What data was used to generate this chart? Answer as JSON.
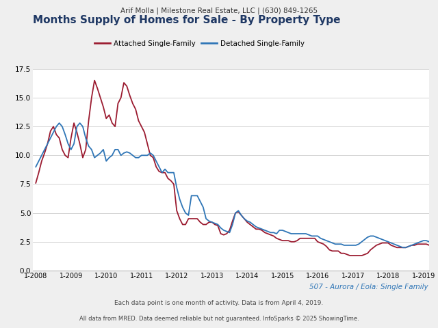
{
  "header": "Arif Molla | Milestone Real Estate, LLC | (630) 849-1265",
  "title": "Months Supply of Homes for Sale - By Property Type",
  "subtitle": "507 - Aurora / Eola: Single Family",
  "footnote1": "Each data point is one month of activity. Data is from April 4, 2019.",
  "footnote2": "All data from MRED. Data deemed reliable but not guaranteed. InfoSparks © 2025 ShowingTime.",
  "legend_attached": "Attached Single-Family",
  "legend_detached": "Detached Single-Family",
  "color_attached": "#9B1B30",
  "color_detached": "#2E75B6",
  "color_title": "#1F3864",
  "color_subtitle": "#2E75B6",
  "background_color": "#EFEFEF",
  "plot_background": "#FFFFFF",
  "ylim": [
    0,
    17.5
  ],
  "yticks": [
    0.0,
    2.5,
    5.0,
    7.5,
    10.0,
    12.5,
    15.0,
    17.5
  ],
  "xtick_labels": [
    "1-2008",
    "1-2009",
    "1-2010",
    "1-2011",
    "1-2012",
    "1-2013",
    "1-2014",
    "1-2015",
    "1-2016",
    "1-2017",
    "1-2018",
    "1-2019"
  ],
  "attached": [
    7.6,
    8.5,
    9.5,
    10.2,
    11.0,
    12.1,
    12.5,
    11.8,
    11.5,
    10.5,
    10.0,
    9.8,
    11.5,
    12.8,
    12.0,
    11.0,
    9.8,
    10.5,
    13.0,
    15.0,
    16.5,
    15.8,
    15.0,
    14.2,
    13.2,
    13.5,
    12.8,
    12.5,
    14.5,
    15.0,
    16.3,
    16.0,
    15.2,
    14.5,
    14.0,
    13.0,
    12.5,
    12.0,
    11.0,
    10.0,
    9.8,
    9.0,
    8.6,
    8.5,
    8.5,
    8.0,
    7.8,
    7.5,
    5.2,
    4.5,
    4.0,
    4.0,
    4.5,
    4.5,
    4.5,
    4.5,
    4.2,
    4.0,
    4.0,
    4.2,
    4.2,
    4.0,
    3.9,
    3.2,
    3.1,
    3.2,
    3.5,
    4.3,
    5.0,
    5.1,
    4.8,
    4.5,
    4.2,
    4.0,
    3.8,
    3.6,
    3.6,
    3.5,
    3.3,
    3.2,
    3.1,
    3.0,
    2.8,
    2.7,
    2.6,
    2.6,
    2.6,
    2.5,
    2.5,
    2.6,
    2.8,
    2.8,
    2.8,
    2.8,
    2.8,
    2.8,
    2.5,
    2.4,
    2.3,
    2.1,
    1.8,
    1.7,
    1.7,
    1.7,
    1.5,
    1.5,
    1.4,
    1.3,
    1.3,
    1.3,
    1.3,
    1.3,
    1.4,
    1.5,
    1.8,
    2.0,
    2.2,
    2.3,
    2.4,
    2.4,
    2.4,
    2.2,
    2.1,
    2.0,
    2.0,
    2.0,
    2.0,
    2.1,
    2.2,
    2.2,
    2.3,
    2.3,
    2.3,
    2.3,
    2.2
  ],
  "detached": [
    9.0,
    9.5,
    10.0,
    10.5,
    11.0,
    11.5,
    12.0,
    12.5,
    12.8,
    12.5,
    11.8,
    11.0,
    10.5,
    11.0,
    12.5,
    12.8,
    12.5,
    11.5,
    10.8,
    10.5,
    9.8,
    10.0,
    10.2,
    10.5,
    9.5,
    9.8,
    10.0,
    10.5,
    10.5,
    10.0,
    10.2,
    10.3,
    10.2,
    10.0,
    9.8,
    9.8,
    10.0,
    10.0,
    10.0,
    10.2,
    10.0,
    9.5,
    9.0,
    8.5,
    8.8,
    8.5,
    8.5,
    8.5,
    7.2,
    6.2,
    5.5,
    5.0,
    4.8,
    6.5,
    6.5,
    6.5,
    6.0,
    5.5,
    4.5,
    4.3,
    4.2,
    4.1,
    4.0,
    3.7,
    3.5,
    3.4,
    3.3,
    4.0,
    5.0,
    5.2,
    4.8,
    4.5,
    4.3,
    4.2,
    4.0,
    3.8,
    3.7,
    3.6,
    3.5,
    3.4,
    3.3,
    3.3,
    3.2,
    3.5,
    3.5,
    3.4,
    3.3,
    3.2,
    3.2,
    3.2,
    3.2,
    3.2,
    3.2,
    3.1,
    3.0,
    3.0,
    3.0,
    2.8,
    2.7,
    2.6,
    2.5,
    2.4,
    2.3,
    2.3,
    2.3,
    2.2,
    2.2,
    2.2,
    2.2,
    2.2,
    2.3,
    2.5,
    2.7,
    2.9,
    3.0,
    3.0,
    2.9,
    2.8,
    2.7,
    2.6,
    2.5,
    2.4,
    2.3,
    2.2,
    2.1,
    2.0,
    2.0,
    2.1,
    2.2,
    2.3,
    2.4,
    2.5,
    2.6,
    2.6,
    2.5
  ],
  "n_months": 135
}
